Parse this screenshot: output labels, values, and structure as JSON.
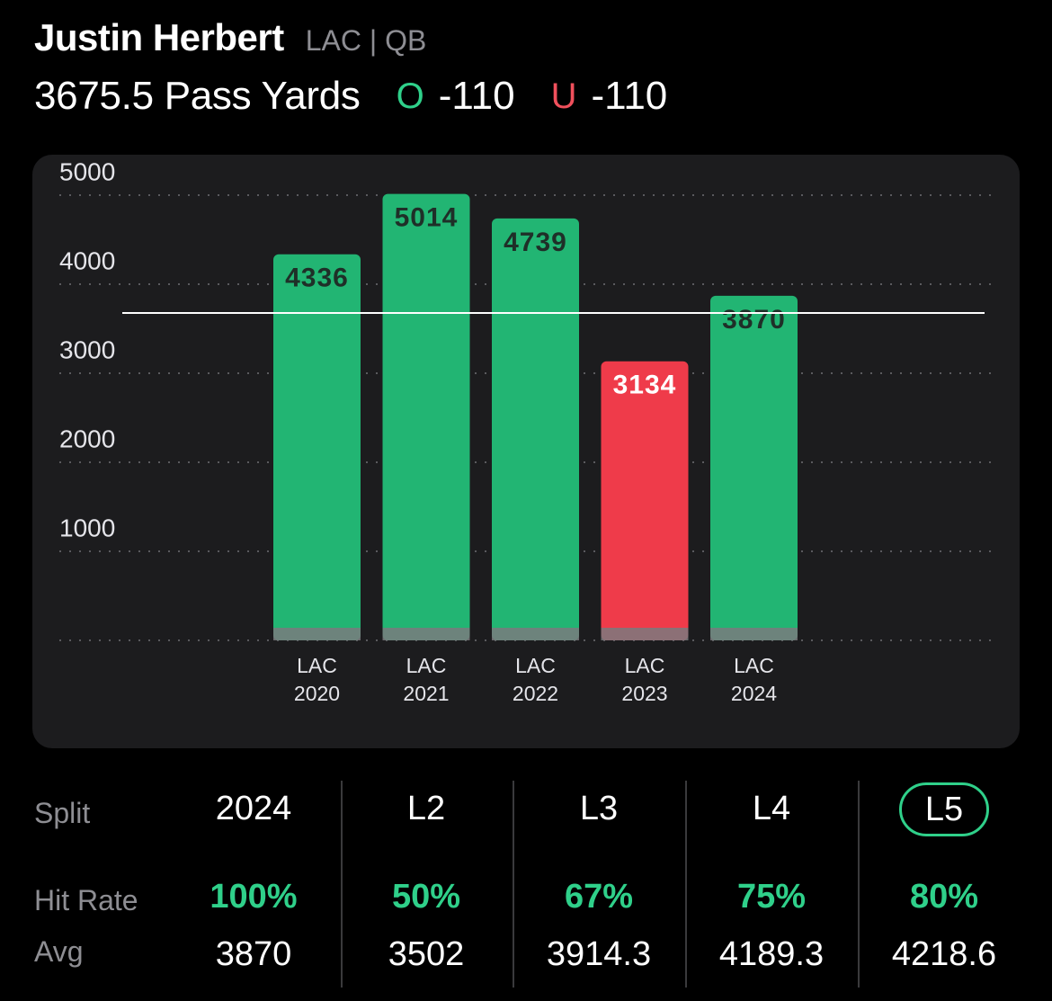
{
  "header": {
    "player_name": "Justin Herbert",
    "team_pos": "LAC | QB",
    "prop_line": "3675.5 Pass Yards",
    "over_symbol": "O",
    "over_odds": "-110",
    "under_symbol": "U",
    "under_odds": "-110"
  },
  "colors": {
    "over": "#2fd08a",
    "under": "#f0505c",
    "bar_hit": "#22b573",
    "bar_miss": "#ef3b4a",
    "card": "#1c1c1e"
  },
  "chart_data": {
    "type": "bar",
    "categories": [
      [
        "LAC",
        "2020"
      ],
      [
        "LAC",
        "2021"
      ],
      [
        "LAC",
        "2022"
      ],
      [
        "LAC",
        "2023"
      ],
      [
        "LAC",
        "2024"
      ]
    ],
    "values": [
      4336,
      5014,
      4739,
      3134,
      3870
    ],
    "hit": [
      true,
      true,
      true,
      false,
      true
    ],
    "yticks": [
      1000,
      2000,
      3000,
      4000,
      5000
    ],
    "ylim": [
      0,
      5000
    ],
    "line_value": 3675.5,
    "grid": true
  },
  "splits": {
    "labels": {
      "split": "Split",
      "hit_rate": "Hit Rate",
      "avg": "Avg"
    },
    "columns": [
      {
        "split": "2024",
        "hit_rate": "100%",
        "avg": "3870",
        "selected": false
      },
      {
        "split": "L2",
        "hit_rate": "50%",
        "avg": "3502",
        "selected": false
      },
      {
        "split": "L3",
        "hit_rate": "67%",
        "avg": "3914.3",
        "selected": false
      },
      {
        "split": "L4",
        "hit_rate": "75%",
        "avg": "4189.3",
        "selected": false
      },
      {
        "split": "L5",
        "hit_rate": "80%",
        "avg": "4218.6",
        "selected": true
      }
    ]
  }
}
